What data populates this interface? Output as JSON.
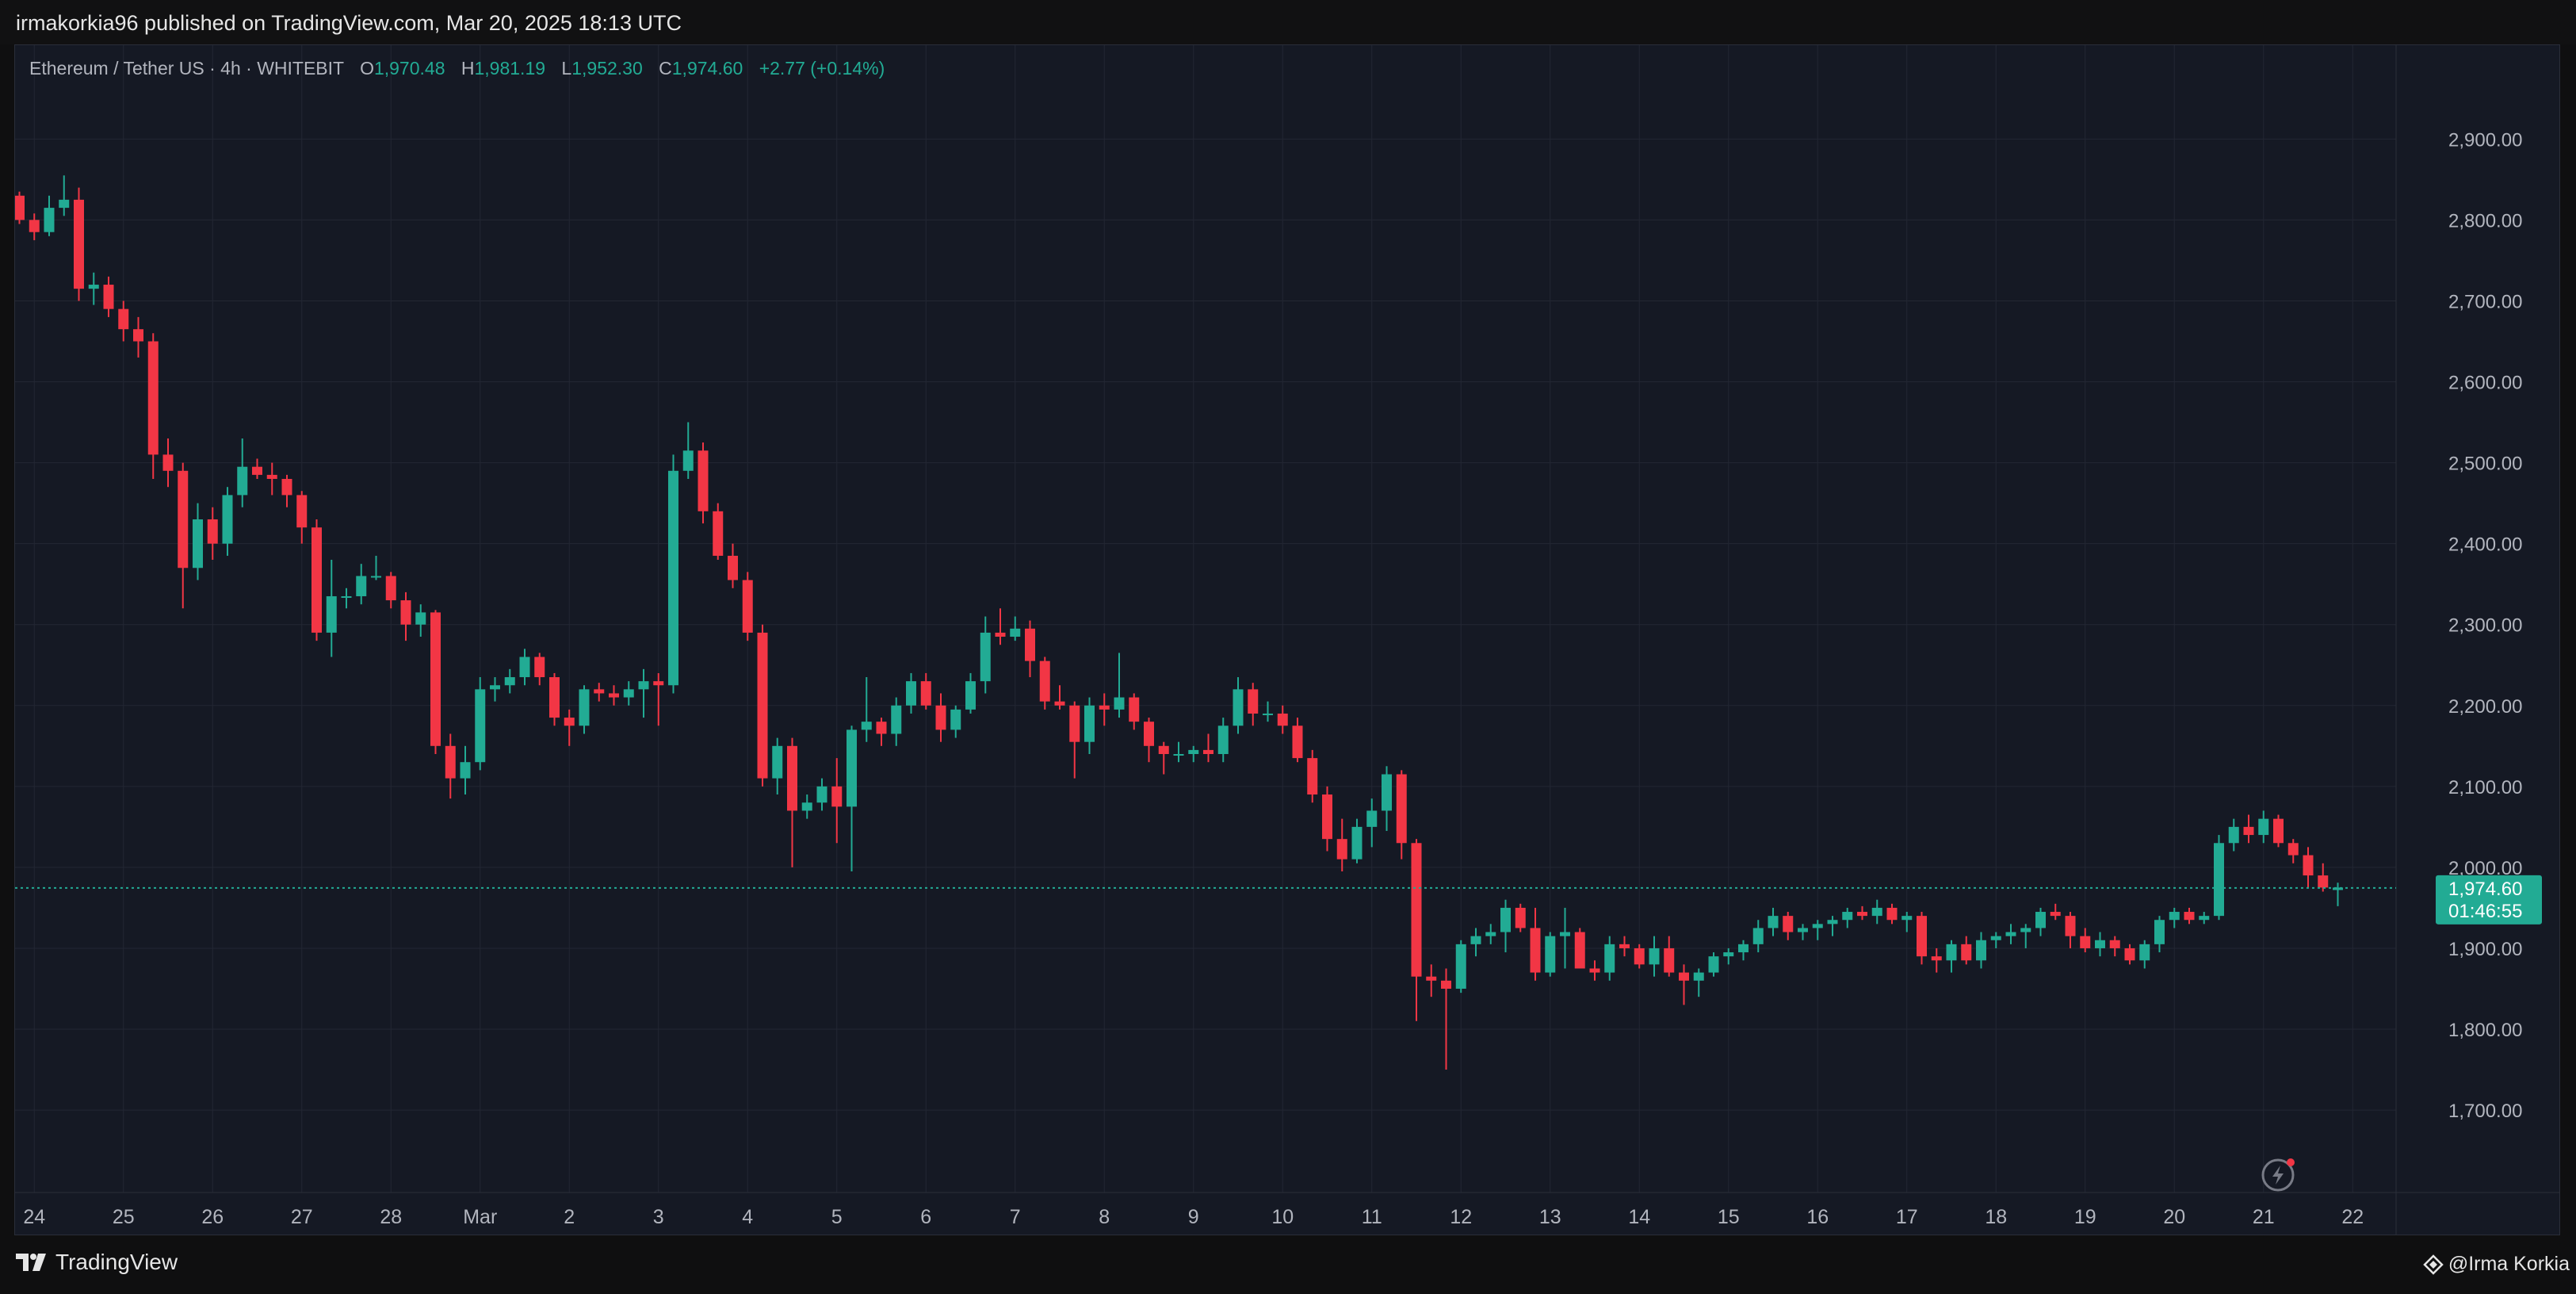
{
  "header": {
    "publish_line": "irmakorkia96 published on TradingView.com, Mar 20, 2025 18:13 UTC"
  },
  "legend": {
    "symbol": "Ethereum / Tether US · 4h · WHITEBIT",
    "open_label": "O",
    "open": "1,970.48",
    "high_label": "H",
    "high": "1,981.19",
    "low_label": "L",
    "low": "1,952.30",
    "close_label": "C",
    "close": "1,974.60",
    "change": "+2.77 (+0.14%)"
  },
  "last_price": {
    "price": "1,974.60",
    "countdown": "01:46:55"
  },
  "footer": {
    "brand": "TradingView",
    "author": "@Irma Korkia"
  },
  "colors": {
    "up": "#22ab94",
    "down": "#f23645",
    "background": "#151924",
    "grid": "#232733"
  },
  "icons": {
    "alert": "lightning-alert-icon",
    "brand": "tradingview-logo-icon",
    "author": "diamond-icon"
  },
  "chart_data": {
    "type": "candlestick",
    "timeframe": "4h",
    "x_unit": "4-hour bars starting Feb 23, 2025 20:00 UTC",
    "ylim": [
      1655,
      2965
    ],
    "y_ticks": [
      1700,
      1800,
      1900,
      2000,
      2100,
      2200,
      2300,
      2400,
      2500,
      2600,
      2700,
      2800,
      2900
    ],
    "y_tick_labels": [
      "1,700.00",
      "1,800.00",
      "1,900.00",
      "2,000.00",
      "2,100.00",
      "2,200.00",
      "2,300.00",
      "2,400.00",
      "2,500.00",
      "2,600.00",
      "2,700.00",
      "2,800.00",
      "2,900.00"
    ],
    "x_ticks": [
      {
        "label": "24",
        "bar": 1
      },
      {
        "label": "25",
        "bar": 7
      },
      {
        "label": "26",
        "bar": 13
      },
      {
        "label": "27",
        "bar": 19
      },
      {
        "label": "28",
        "bar": 25
      },
      {
        "label": "Mar",
        "bar": 31
      },
      {
        "label": "2",
        "bar": 37
      },
      {
        "label": "3",
        "bar": 43
      },
      {
        "label": "4",
        "bar": 49
      },
      {
        "label": "5",
        "bar": 55
      },
      {
        "label": "6",
        "bar": 61
      },
      {
        "label": "7",
        "bar": 67
      },
      {
        "label": "8",
        "bar": 73
      },
      {
        "label": "9",
        "bar": 79
      },
      {
        "label": "10",
        "bar": 85
      },
      {
        "label": "11",
        "bar": 91
      },
      {
        "label": "12",
        "bar": 97
      },
      {
        "label": "13",
        "bar": 103
      },
      {
        "label": "14",
        "bar": 109
      },
      {
        "label": "15",
        "bar": 115
      },
      {
        "label": "16",
        "bar": 121
      },
      {
        "label": "17",
        "bar": 127
      },
      {
        "label": "18",
        "bar": 133
      },
      {
        "label": "19",
        "bar": 139
      },
      {
        "label": "20",
        "bar": 145
      },
      {
        "label": "21",
        "bar": 151
      },
      {
        "label": "22",
        "bar": 157
      }
    ],
    "last_price": 1974.6,
    "grid": true,
    "candles": [
      [
        2830,
        2835,
        2795,
        2800
      ],
      [
        2800,
        2808,
        2775,
        2785
      ],
      [
        2785,
        2830,
        2780,
        2815
      ],
      [
        2815,
        2855,
        2805,
        2825
      ],
      [
        2825,
        2840,
        2700,
        2715
      ],
      [
        2715,
        2735,
        2695,
        2720
      ],
      [
        2720,
        2730,
        2680,
        2690
      ],
      [
        2690,
        2700,
        2650,
        2665
      ],
      [
        2665,
        2680,
        2630,
        2650
      ],
      [
        2650,
        2660,
        2480,
        2510
      ],
      [
        2510,
        2530,
        2470,
        2490
      ],
      [
        2490,
        2500,
        2320,
        2370
      ],
      [
        2370,
        2450,
        2355,
        2430
      ],
      [
        2430,
        2445,
        2380,
        2400
      ],
      [
        2400,
        2470,
        2385,
        2460
      ],
      [
        2460,
        2530,
        2445,
        2495
      ],
      [
        2495,
        2505,
        2480,
        2485
      ],
      [
        2485,
        2500,
        2460,
        2480
      ],
      [
        2480,
        2485,
        2445,
        2460
      ],
      [
        2460,
        2465,
        2400,
        2420
      ],
      [
        2420,
        2430,
        2280,
        2290
      ],
      [
        2290,
        2380,
        2260,
        2335
      ],
      [
        2335,
        2345,
        2320,
        2335
      ],
      [
        2335,
        2375,
        2325,
        2360
      ],
      [
        2360,
        2385,
        2355,
        2360
      ],
      [
        2360,
        2365,
        2320,
        2330
      ],
      [
        2330,
        2340,
        2280,
        2300
      ],
      [
        2300,
        2325,
        2285,
        2315
      ],
      [
        2315,
        2318,
        2140,
        2150
      ],
      [
        2150,
        2165,
        2085,
        2110
      ],
      [
        2110,
        2150,
        2090,
        2130
      ],
      [
        2130,
        2235,
        2120,
        2220
      ],
      [
        2220,
        2235,
        2205,
        2225
      ],
      [
        2225,
        2245,
        2215,
        2235
      ],
      [
        2235,
        2270,
        2225,
        2260
      ],
      [
        2260,
        2265,
        2225,
        2235
      ],
      [
        2235,
        2240,
        2175,
        2185
      ],
      [
        2185,
        2195,
        2150,
        2175
      ],
      [
        2175,
        2225,
        2165,
        2220
      ],
      [
        2220,
        2228,
        2205,
        2215
      ],
      [
        2215,
        2225,
        2200,
        2210
      ],
      [
        2210,
        2230,
        2200,
        2220
      ],
      [
        2220,
        2245,
        2185,
        2230
      ],
      [
        2230,
        2240,
        2175,
        2225
      ],
      [
        2225,
        2510,
        2215,
        2490
      ],
      [
        2490,
        2550,
        2480,
        2515
      ],
      [
        2515,
        2525,
        2425,
        2440
      ],
      [
        2440,
        2450,
        2380,
        2385
      ],
      [
        2385,
        2400,
        2345,
        2355
      ],
      [
        2355,
        2365,
        2280,
        2290
      ],
      [
        2290,
        2300,
        2100,
        2110
      ],
      [
        2110,
        2160,
        2090,
        2150
      ],
      [
        2150,
        2160,
        2000,
        2070
      ],
      [
        2070,
        2090,
        2060,
        2080
      ],
      [
        2080,
        2110,
        2070,
        2100
      ],
      [
        2100,
        2135,
        2030,
        2075
      ],
      [
        2075,
        2175,
        1995,
        2170
      ],
      [
        2170,
        2235,
        2155,
        2180
      ],
      [
        2180,
        2185,
        2150,
        2165
      ],
      [
        2165,
        2210,
        2150,
        2200
      ],
      [
        2200,
        2240,
        2190,
        2230
      ],
      [
        2230,
        2240,
        2195,
        2200
      ],
      [
        2200,
        2215,
        2155,
        2170
      ],
      [
        2170,
        2200,
        2160,
        2195
      ],
      [
        2195,
        2240,
        2190,
        2230
      ],
      [
        2230,
        2310,
        2215,
        2290
      ],
      [
        2290,
        2320,
        2275,
        2285
      ],
      [
        2285,
        2310,
        2280,
        2295
      ],
      [
        2295,
        2305,
        2235,
        2255
      ],
      [
        2255,
        2260,
        2195,
        2205
      ],
      [
        2205,
        2225,
        2195,
        2200
      ],
      [
        2200,
        2205,
        2110,
        2155
      ],
      [
        2155,
        2210,
        2140,
        2200
      ],
      [
        2200,
        2215,
        2175,
        2195
      ],
      [
        2195,
        2265,
        2185,
        2210
      ],
      [
        2210,
        2215,
        2170,
        2180
      ],
      [
        2180,
        2185,
        2130,
        2150
      ],
      [
        2150,
        2155,
        2115,
        2140
      ],
      [
        2140,
        2155,
        2130,
        2140
      ],
      [
        2140,
        2150,
        2130,
        2145
      ],
      [
        2145,
        2165,
        2130,
        2140
      ],
      [
        2140,
        2185,
        2130,
        2175
      ],
      [
        2175,
        2235,
        2165,
        2220
      ],
      [
        2220,
        2228,
        2175,
        2190
      ],
      [
        2190,
        2205,
        2180,
        2190
      ],
      [
        2190,
        2200,
        2165,
        2175
      ],
      [
        2175,
        2185,
        2130,
        2135
      ],
      [
        2135,
        2145,
        2080,
        2090
      ],
      [
        2090,
        2100,
        2020,
        2035
      ],
      [
        2035,
        2060,
        1995,
        2010
      ],
      [
        2010,
        2060,
        2005,
        2050
      ],
      [
        2050,
        2085,
        2025,
        2070
      ],
      [
        2070,
        2125,
        2045,
        2115
      ],
      [
        2115,
        2120,
        2010,
        2030
      ],
      [
        2030,
        2035,
        1810,
        1865
      ],
      [
        1865,
        1880,
        1840,
        1860
      ],
      [
        1860,
        1875,
        1750,
        1850
      ],
      [
        1850,
        1910,
        1845,
        1905
      ],
      [
        1905,
        1925,
        1890,
        1915
      ],
      [
        1915,
        1930,
        1905,
        1920
      ],
      [
        1920,
        1960,
        1895,
        1950
      ],
      [
        1950,
        1955,
        1920,
        1925
      ],
      [
        1925,
        1950,
        1860,
        1870
      ],
      [
        1870,
        1920,
        1865,
        1915
      ],
      [
        1915,
        1950,
        1875,
        1920
      ],
      [
        1920,
        1925,
        1880,
        1875
      ],
      [
        1875,
        1885,
        1860,
        1870
      ],
      [
        1870,
        1915,
        1860,
        1905
      ],
      [
        1905,
        1915,
        1890,
        1900
      ],
      [
        1900,
        1905,
        1875,
        1880
      ],
      [
        1880,
        1915,
        1865,
        1900
      ],
      [
        1900,
        1915,
        1865,
        1870
      ],
      [
        1870,
        1880,
        1830,
        1860
      ],
      [
        1860,
        1875,
        1840,
        1870
      ],
      [
        1870,
        1895,
        1865,
        1890
      ],
      [
        1890,
        1900,
        1880,
        1895
      ],
      [
        1895,
        1910,
        1885,
        1905
      ],
      [
        1905,
        1935,
        1895,
        1925
      ],
      [
        1925,
        1950,
        1915,
        1940
      ],
      [
        1940,
        1945,
        1910,
        1920
      ],
      [
        1920,
        1930,
        1910,
        1925
      ],
      [
        1925,
        1935,
        1910,
        1930
      ],
      [
        1930,
        1940,
        1915,
        1935
      ],
      [
        1935,
        1950,
        1925,
        1945
      ],
      [
        1945,
        1952,
        1935,
        1940
      ],
      [
        1940,
        1960,
        1930,
        1950
      ],
      [
        1950,
        1955,
        1930,
        1935
      ],
      [
        1935,
        1945,
        1920,
        1940
      ],
      [
        1940,
        1945,
        1880,
        1890
      ],
      [
        1890,
        1900,
        1870,
        1885
      ],
      [
        1885,
        1910,
        1870,
        1905
      ],
      [
        1905,
        1915,
        1880,
        1885
      ],
      [
        1885,
        1920,
        1875,
        1910
      ],
      [
        1910,
        1920,
        1900,
        1915
      ],
      [
        1915,
        1930,
        1905,
        1920
      ],
      [
        1920,
        1930,
        1900,
        1925
      ],
      [
        1925,
        1950,
        1915,
        1945
      ],
      [
        1945,
        1955,
        1935,
        1940
      ],
      [
        1940,
        1945,
        1900,
        1915
      ],
      [
        1915,
        1925,
        1895,
        1900
      ],
      [
        1900,
        1920,
        1890,
        1910
      ],
      [
        1910,
        1915,
        1890,
        1900
      ],
      [
        1900,
        1905,
        1880,
        1885
      ],
      [
        1885,
        1910,
        1875,
        1905
      ],
      [
        1905,
        1940,
        1895,
        1935
      ],
      [
        1935,
        1950,
        1925,
        1945
      ],
      [
        1945,
        1950,
        1930,
        1935
      ],
      [
        1935,
        1945,
        1930,
        1940
      ],
      [
        1940,
        2040,
        1935,
        2030
      ],
      [
        2030,
        2060,
        2020,
        2050
      ],
      [
        2050,
        2065,
        2030,
        2040
      ],
      [
        2040,
        2070,
        2030,
        2060
      ],
      [
        2060,
        2065,
        2025,
        2030
      ],
      [
        2030,
        2035,
        2005,
        2015
      ],
      [
        2015,
        2025,
        1975,
        1990
      ],
      [
        1990,
        2005,
        1970,
        1975
      ],
      [
        1972,
        1981,
        1952,
        1975
      ]
    ]
  }
}
